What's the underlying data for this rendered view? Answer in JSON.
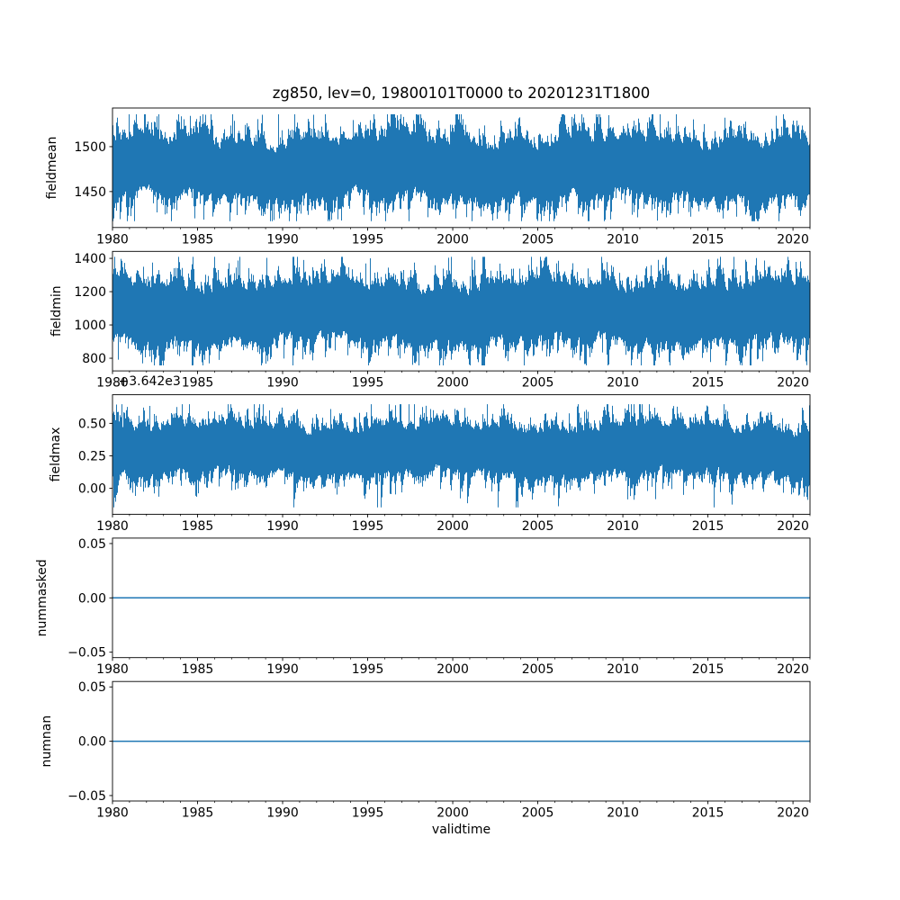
{
  "figure": {
    "title": "zg850, lev=0, 19800101T0000 to 20201231T1800",
    "background_color": "#ffffff",
    "line_color": "#1f77b4",
    "axis_color": "#000000"
  },
  "x_axis": {
    "label": "validtime",
    "range": [
      1980,
      2021
    ],
    "ticks": [
      1980,
      1985,
      1990,
      1995,
      2000,
      2005,
      2010,
      2015,
      2020
    ],
    "tick_labels": [
      "1980",
      "1985",
      "1990",
      "1995",
      "2000",
      "2005",
      "2010",
      "2015",
      "2020"
    ],
    "minor_tick_step_years": 1
  },
  "chart_data": [
    {
      "type": "line",
      "ylabel": "fieldmean",
      "ylim": [
        1410,
        1543
      ],
      "yticks": [
        1450,
        1500
      ],
      "ytick_labels": [
        "1450",
        "1500"
      ],
      "series": [
        {
          "name": "fieldmean",
          "kind": "dense-noise",
          "mean": 1476,
          "std": 20,
          "min": 1417,
          "max": 1536
        }
      ]
    },
    {
      "type": "line",
      "ylabel": "fieldmin",
      "ylim": [
        724,
        1442
      ],
      "yticks": [
        800,
        1000,
        1200,
        1400
      ],
      "ytick_labels": [
        "800",
        "1000",
        "1200",
        "1400"
      ],
      "series": [
        {
          "name": "fieldmin",
          "kind": "dense-noise",
          "mean": 1078,
          "std": 105,
          "min": 757,
          "max": 1409
        }
      ]
    },
    {
      "type": "line",
      "ylabel": "fieldmax",
      "offset_text": "+3.642e3",
      "offset_value": 3642,
      "ylim": [
        -0.2,
        0.72
      ],
      "yticks": [
        0.0,
        0.25,
        0.5
      ],
      "ytick_labels": [
        "0.00",
        "0.25",
        "0.50"
      ],
      "series": [
        {
          "name": "fieldmax",
          "kind": "dense-noise",
          "mean": 0.295,
          "std": 0.115,
          "min": -0.147,
          "max": 0.647
        }
      ]
    },
    {
      "type": "line",
      "ylabel": "nummasked",
      "ylim": [
        -0.055,
        0.055
      ],
      "yticks": [
        -0.05,
        0.0,
        0.05
      ],
      "ytick_labels": [
        "−0.05",
        "0.00",
        "0.05"
      ],
      "series": [
        {
          "name": "nummasked",
          "kind": "constant",
          "value": 0
        }
      ]
    },
    {
      "type": "line",
      "ylabel": "numnan",
      "ylim": [
        -0.055,
        0.055
      ],
      "yticks": [
        -0.05,
        0.0,
        0.05
      ],
      "ytick_labels": [
        "−0.05",
        "0.00",
        "0.05"
      ],
      "series": [
        {
          "name": "numnan",
          "kind": "constant",
          "value": 0
        }
      ]
    }
  ]
}
